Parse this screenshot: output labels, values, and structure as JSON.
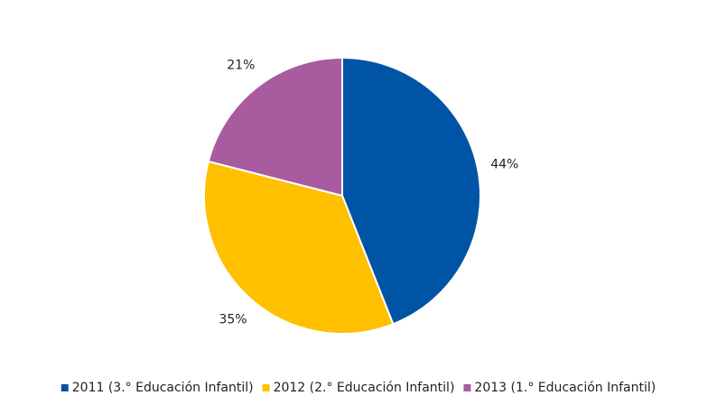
{
  "chart_data": {
    "type": "pie",
    "categories": [
      "2011 (3.° Educación Infantil)",
      "2012 (2.° Educación Infantil)",
      "2013 (1.° Educación Infantil)"
    ],
    "values": [
      44,
      35,
      21
    ],
    "value_labels": [
      "44%",
      "35%",
      "21%"
    ],
    "colors": [
      "#0054a6",
      "#ffc000",
      "#a85b9f"
    ],
    "legend": "bottom"
  }
}
